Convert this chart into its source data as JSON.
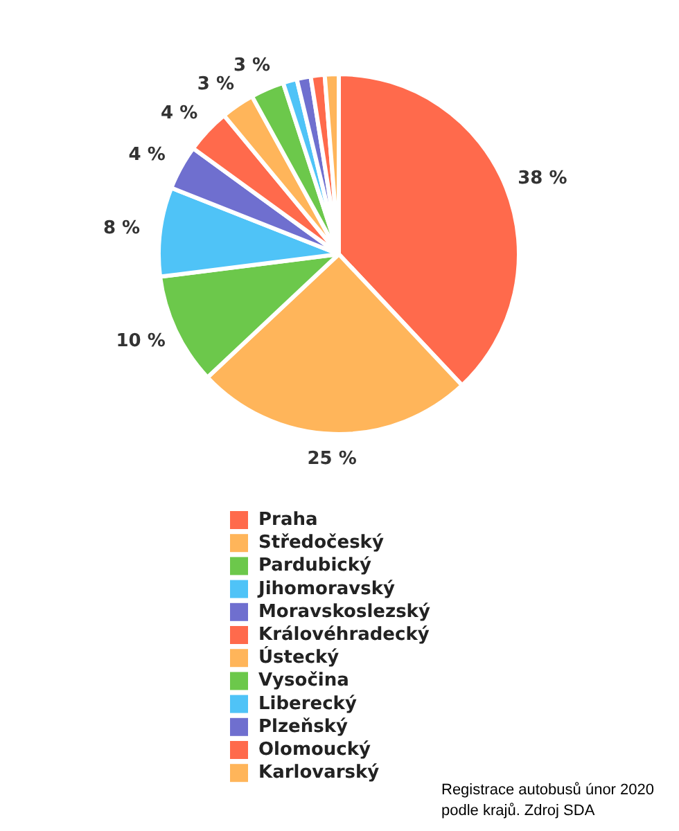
{
  "chart_data": {
    "type": "pie",
    "categories": [
      "Praha",
      "Středočeský",
      "Pardubický",
      "Jihomoravský",
      "Moravskoslezský",
      "Královéhradecký",
      "Ústecký",
      "Vysočina",
      "Liberecký",
      "Plzeňský",
      "Olomoucký",
      "Karlovarský"
    ],
    "values": [
      38,
      25,
      10,
      8,
      4,
      4,
      3,
      3,
      1.25,
      1.25,
      1.25,
      1.25
    ],
    "value_labels": [
      "38 %",
      "25 %",
      "10 %",
      "8 %",
      "4 %",
      "4 %",
      "3 %",
      "3 %",
      null,
      null,
      null,
      null
    ],
    "colors": [
      "#ff6a4c",
      "#ffb55a",
      "#6cc84b",
      "#4fc3f7",
      "#6f6fcf",
      "#ff6a4c",
      "#ffb55a",
      "#6cc84b",
      "#4fc3f7",
      "#6f6fcf",
      "#ff6a4c",
      "#ffb55a"
    ],
    "legend": "bottom",
    "annotations": [
      "Registrace autobusů únor 2020 podle krajů. Zdroj SDA"
    ]
  }
}
